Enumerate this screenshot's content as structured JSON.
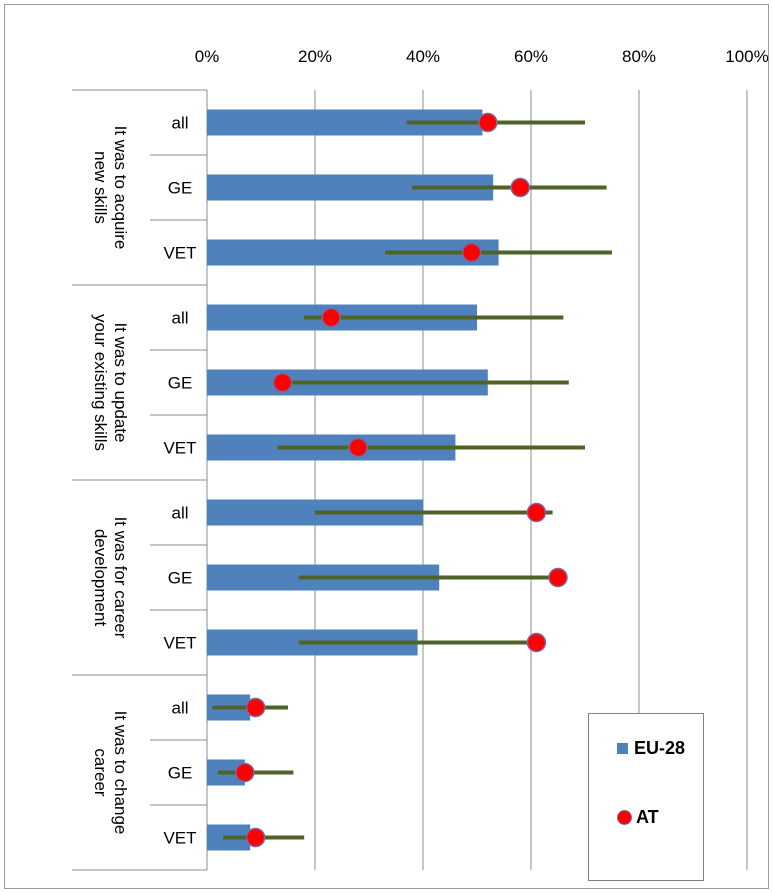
{
  "chart_data": {
    "type": "bar",
    "orientation": "horizontal",
    "x_ticks": [
      "0%",
      "20%",
      "40%",
      "60%",
      "80%",
      "100%"
    ],
    "xlim": [
      0,
      100
    ],
    "grid": true,
    "legend_position": "bottom-right",
    "groups": [
      {
        "label_lines": [
          "It was to acquire",
          "new skills"
        ],
        "categories": [
          "all",
          "GE",
          "VET"
        ]
      },
      {
        "label_lines": [
          "It was to update",
          "your existing skills"
        ],
        "categories": [
          "all",
          "GE",
          "VET"
        ]
      },
      {
        "label_lines": [
          "It was for career",
          "development"
        ],
        "categories": [
          "all",
          "GE",
          "VET"
        ]
      },
      {
        "label_lines": [
          "It was to change",
          "career"
        ],
        "categories": [
          "all",
          "GE",
          "VET"
        ]
      }
    ],
    "series": [
      {
        "name": "EU-28",
        "type": "bar",
        "color": "#4f81bd",
        "values": [
          51,
          53,
          54,
          50,
          52,
          46,
          40,
          43,
          39,
          8,
          7,
          8
        ]
      },
      {
        "name": "AT",
        "type": "point",
        "color": "#ff0000",
        "values": [
          52,
          58,
          49,
          23,
          14,
          28,
          61,
          65,
          61,
          9,
          7,
          9
        ],
        "range_low": [
          37,
          38,
          33,
          18,
          14,
          13,
          20,
          17,
          17,
          1,
          2,
          3
        ],
        "range_high": [
          70,
          74,
          75,
          66,
          67,
          70,
          64,
          65,
          61,
          15,
          16,
          18
        ],
        "range_color": "#4f6228"
      }
    ]
  }
}
